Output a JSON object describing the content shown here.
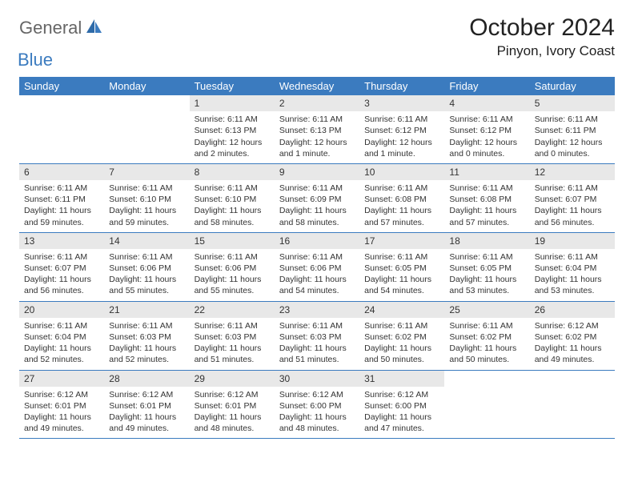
{
  "logo": {
    "text1": "General",
    "text2": "Blue"
  },
  "title": "October 2024",
  "location": "Pinyon, Ivory Coast",
  "colors": {
    "header_bg": "#3b7bbf",
    "header_fg": "#ffffff",
    "daynum_bg": "#e8e8e8",
    "row_border": "#3b7bbf",
    "text": "#333333",
    "logo_gray": "#666666",
    "logo_blue": "#3b7bbf"
  },
  "typography": {
    "title_fontsize": 30,
    "location_fontsize": 17,
    "dayhead_fontsize": 13,
    "daynum_fontsize": 12,
    "body_fontsize": 10.5,
    "font_family": "Arial"
  },
  "day_headers": [
    "Sunday",
    "Monday",
    "Tuesday",
    "Wednesday",
    "Thursday",
    "Friday",
    "Saturday"
  ],
  "weeks": [
    [
      {
        "n": "",
        "sr": "",
        "ss": "",
        "dl": ""
      },
      {
        "n": "",
        "sr": "",
        "ss": "",
        "dl": ""
      },
      {
        "n": "1",
        "sr": "Sunrise: 6:11 AM",
        "ss": "Sunset: 6:13 PM",
        "dl": "Daylight: 12 hours and 2 minutes."
      },
      {
        "n": "2",
        "sr": "Sunrise: 6:11 AM",
        "ss": "Sunset: 6:13 PM",
        "dl": "Daylight: 12 hours and 1 minute."
      },
      {
        "n": "3",
        "sr": "Sunrise: 6:11 AM",
        "ss": "Sunset: 6:12 PM",
        "dl": "Daylight: 12 hours and 1 minute."
      },
      {
        "n": "4",
        "sr": "Sunrise: 6:11 AM",
        "ss": "Sunset: 6:12 PM",
        "dl": "Daylight: 12 hours and 0 minutes."
      },
      {
        "n": "5",
        "sr": "Sunrise: 6:11 AM",
        "ss": "Sunset: 6:11 PM",
        "dl": "Daylight: 12 hours and 0 minutes."
      }
    ],
    [
      {
        "n": "6",
        "sr": "Sunrise: 6:11 AM",
        "ss": "Sunset: 6:11 PM",
        "dl": "Daylight: 11 hours and 59 minutes."
      },
      {
        "n": "7",
        "sr": "Sunrise: 6:11 AM",
        "ss": "Sunset: 6:10 PM",
        "dl": "Daylight: 11 hours and 59 minutes."
      },
      {
        "n": "8",
        "sr": "Sunrise: 6:11 AM",
        "ss": "Sunset: 6:10 PM",
        "dl": "Daylight: 11 hours and 58 minutes."
      },
      {
        "n": "9",
        "sr": "Sunrise: 6:11 AM",
        "ss": "Sunset: 6:09 PM",
        "dl": "Daylight: 11 hours and 58 minutes."
      },
      {
        "n": "10",
        "sr": "Sunrise: 6:11 AM",
        "ss": "Sunset: 6:08 PM",
        "dl": "Daylight: 11 hours and 57 minutes."
      },
      {
        "n": "11",
        "sr": "Sunrise: 6:11 AM",
        "ss": "Sunset: 6:08 PM",
        "dl": "Daylight: 11 hours and 57 minutes."
      },
      {
        "n": "12",
        "sr": "Sunrise: 6:11 AM",
        "ss": "Sunset: 6:07 PM",
        "dl": "Daylight: 11 hours and 56 minutes."
      }
    ],
    [
      {
        "n": "13",
        "sr": "Sunrise: 6:11 AM",
        "ss": "Sunset: 6:07 PM",
        "dl": "Daylight: 11 hours and 56 minutes."
      },
      {
        "n": "14",
        "sr": "Sunrise: 6:11 AM",
        "ss": "Sunset: 6:06 PM",
        "dl": "Daylight: 11 hours and 55 minutes."
      },
      {
        "n": "15",
        "sr": "Sunrise: 6:11 AM",
        "ss": "Sunset: 6:06 PM",
        "dl": "Daylight: 11 hours and 55 minutes."
      },
      {
        "n": "16",
        "sr": "Sunrise: 6:11 AM",
        "ss": "Sunset: 6:06 PM",
        "dl": "Daylight: 11 hours and 54 minutes."
      },
      {
        "n": "17",
        "sr": "Sunrise: 6:11 AM",
        "ss": "Sunset: 6:05 PM",
        "dl": "Daylight: 11 hours and 54 minutes."
      },
      {
        "n": "18",
        "sr": "Sunrise: 6:11 AM",
        "ss": "Sunset: 6:05 PM",
        "dl": "Daylight: 11 hours and 53 minutes."
      },
      {
        "n": "19",
        "sr": "Sunrise: 6:11 AM",
        "ss": "Sunset: 6:04 PM",
        "dl": "Daylight: 11 hours and 53 minutes."
      }
    ],
    [
      {
        "n": "20",
        "sr": "Sunrise: 6:11 AM",
        "ss": "Sunset: 6:04 PM",
        "dl": "Daylight: 11 hours and 52 minutes."
      },
      {
        "n": "21",
        "sr": "Sunrise: 6:11 AM",
        "ss": "Sunset: 6:03 PM",
        "dl": "Daylight: 11 hours and 52 minutes."
      },
      {
        "n": "22",
        "sr": "Sunrise: 6:11 AM",
        "ss": "Sunset: 6:03 PM",
        "dl": "Daylight: 11 hours and 51 minutes."
      },
      {
        "n": "23",
        "sr": "Sunrise: 6:11 AM",
        "ss": "Sunset: 6:03 PM",
        "dl": "Daylight: 11 hours and 51 minutes."
      },
      {
        "n": "24",
        "sr": "Sunrise: 6:11 AM",
        "ss": "Sunset: 6:02 PM",
        "dl": "Daylight: 11 hours and 50 minutes."
      },
      {
        "n": "25",
        "sr": "Sunrise: 6:11 AM",
        "ss": "Sunset: 6:02 PM",
        "dl": "Daylight: 11 hours and 50 minutes."
      },
      {
        "n": "26",
        "sr": "Sunrise: 6:12 AM",
        "ss": "Sunset: 6:02 PM",
        "dl": "Daylight: 11 hours and 49 minutes."
      }
    ],
    [
      {
        "n": "27",
        "sr": "Sunrise: 6:12 AM",
        "ss": "Sunset: 6:01 PM",
        "dl": "Daylight: 11 hours and 49 minutes."
      },
      {
        "n": "28",
        "sr": "Sunrise: 6:12 AM",
        "ss": "Sunset: 6:01 PM",
        "dl": "Daylight: 11 hours and 49 minutes."
      },
      {
        "n": "29",
        "sr": "Sunrise: 6:12 AM",
        "ss": "Sunset: 6:01 PM",
        "dl": "Daylight: 11 hours and 48 minutes."
      },
      {
        "n": "30",
        "sr": "Sunrise: 6:12 AM",
        "ss": "Sunset: 6:00 PM",
        "dl": "Daylight: 11 hours and 48 minutes."
      },
      {
        "n": "31",
        "sr": "Sunrise: 6:12 AM",
        "ss": "Sunset: 6:00 PM",
        "dl": "Daylight: 11 hours and 47 minutes."
      },
      {
        "n": "",
        "sr": "",
        "ss": "",
        "dl": ""
      },
      {
        "n": "",
        "sr": "",
        "ss": "",
        "dl": ""
      }
    ]
  ]
}
